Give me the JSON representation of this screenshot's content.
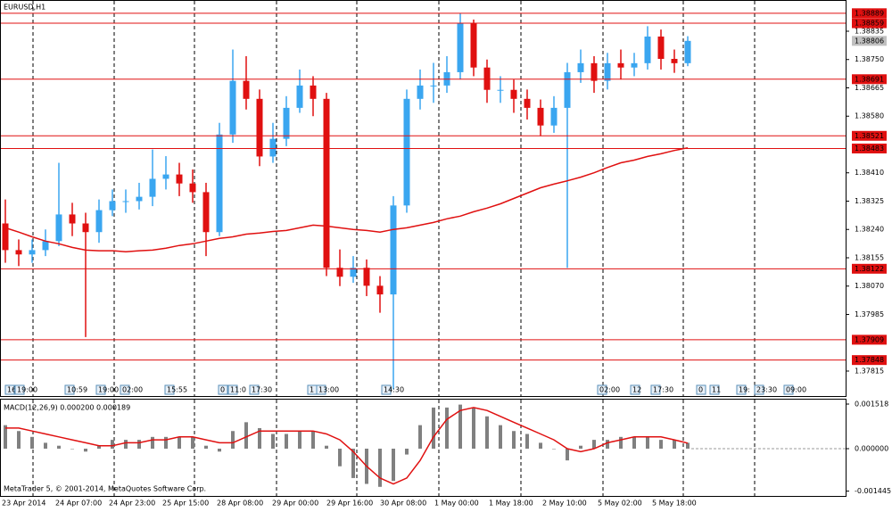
{
  "title": "EURUSD,H1",
  "footer": "MetaTrader 5, © 2001-2014, MetaQuotes Software Corp.",
  "events": [
    "16",
    "19:00",
    "10:59",
    "19:00",
    "02:00",
    "15:55",
    "0",
    "11:0",
    "17:30",
    "1",
    "13:00",
    "14:30",
    "02:00",
    "12",
    "17:30",
    "0",
    "11",
    "19:",
    "23:30",
    "09:00"
  ],
  "chart_data": {
    "type": "candlestick",
    "open": [
      1.38258,
      1.38178,
      1.38165,
      1.38178,
      1.38205,
      1.38285,
      1.38258,
      1.38232,
      1.38298,
      1.38325,
      1.38325,
      1.38338,
      1.38392,
      1.38405,
      1.38378,
      1.38352,
      1.38232,
      1.38525,
      1.38686,
      1.38632,
      1.38459,
      1.38512,
      1.38605,
      1.38672,
      1.38632,
      1.38125,
      1.38098,
      1.38125,
      1.38071,
      1.38045,
      1.38312,
      1.38632,
      1.38672,
      1.38672,
      1.38712,
      1.38859,
      1.38726,
      1.38659,
      1.38659,
      1.38632,
      1.38605,
      1.38552,
      1.38605,
      1.38712,
      1.38739,
      1.38686,
      1.38739,
      1.38726,
      1.38739,
      1.38819,
      1.38752,
      1.38739
    ],
    "high": [
      1.3833,
      1.3821,
      1.3821,
      1.3824,
      1.3844,
      1.3832,
      1.3829,
      1.3833,
      1.3836,
      1.3836,
      1.3838,
      1.3848,
      1.3846,
      1.3844,
      1.3842,
      1.3838,
      1.3856,
      1.3878,
      1.3876,
      1.3866,
      1.3856,
      1.3864,
      1.3872,
      1.387,
      1.3865,
      1.3818,
      1.3816,
      1.3815,
      1.381,
      1.3834,
      1.3866,
      1.3872,
      1.3874,
      1.3876,
      1.38889,
      1.3887,
      1.3875,
      1.387,
      1.3869,
      1.3866,
      1.3863,
      1.3864,
      1.3874,
      1.3878,
      1.3876,
      1.3877,
      1.3878,
      1.3877,
      1.3885,
      1.3884,
      1.3878,
      1.3882
    ],
    "low": [
      1.3814,
      1.3813,
      1.3814,
      1.3816,
      1.3819,
      1.3822,
      1.37917,
      1.382,
      1.3828,
      1.3829,
      1.383,
      1.3831,
      1.3836,
      1.3834,
      1.3832,
      1.3816,
      1.3822,
      1.385,
      1.386,
      1.3843,
      1.3844,
      1.3849,
      1.3859,
      1.3858,
      1.381,
      1.3807,
      1.3808,
      1.3804,
      1.3799,
      1.3776,
      1.3829,
      1.386,
      1.3862,
      1.3865,
      1.3869,
      1.387,
      1.3862,
      1.3862,
      1.3859,
      1.3857,
      1.3852,
      1.3853,
      1.38125,
      1.3868,
      1.3865,
      1.3866,
      1.3869,
      1.387,
      1.3872,
      1.3872,
      1.3871,
      1.3873
    ],
    "close": [
      1.38178,
      1.38165,
      1.38178,
      1.38205,
      1.38285,
      1.38258,
      1.38232,
      1.38298,
      1.38325,
      1.38325,
      1.38338,
      1.38392,
      1.38405,
      1.38378,
      1.38352,
      1.38232,
      1.38525,
      1.38686,
      1.38632,
      1.38459,
      1.38512,
      1.38605,
      1.38672,
      1.38632,
      1.38125,
      1.38098,
      1.38125,
      1.38071,
      1.38045,
      1.38312,
      1.38632,
      1.38672,
      1.38672,
      1.38712,
      1.38859,
      1.38726,
      1.38659,
      1.38659,
      1.38632,
      1.38605,
      1.38552,
      1.38605,
      1.38712,
      1.38739,
      1.38686,
      1.38739,
      1.38726,
      1.38739,
      1.38819,
      1.38752,
      1.38739,
      1.38806
    ],
    "ma": [
      1.38245,
      1.38232,
      1.38218,
      1.38205,
      1.38197,
      1.38186,
      1.38178,
      1.38176,
      1.38176,
      1.38173,
      1.38176,
      1.38178,
      1.38184,
      1.38192,
      1.38197,
      1.38205,
      1.38213,
      1.38218,
      1.38226,
      1.38229,
      1.38234,
      1.38237,
      1.38245,
      1.38253,
      1.3825,
      1.38245,
      1.3824,
      1.38237,
      1.38232,
      1.3824,
      1.38245,
      1.38253,
      1.38261,
      1.38272,
      1.3828,
      1.38293,
      1.38304,
      1.38317,
      1.38333,
      1.38349,
      1.38365,
      1.38376,
      1.38386,
      1.38397,
      1.3841,
      1.38426,
      1.3844,
      1.38448,
      1.38459,
      1.38467,
      1.38477,
      1.38485
    ],
    "up_color": "#3aa6f0",
    "down_color": "#e01010",
    "ma_color": "#e01010",
    "ylim": [
      1.3774,
      1.38926
    ],
    "yticks": [
      1.38835,
      {
        "value": 1.3875,
        "label": "1.38750"
      },
      1.38665,
      {
        "value": 1.3858,
        "label": "1.38580"
      },
      {
        "value": 1.3841,
        "label": "1.38410"
      },
      1.38325,
      {
        "value": 1.3824,
        "label": "1.38240"
      },
      1.38155,
      {
        "value": 1.3807,
        "label": "1.38070"
      },
      1.37985,
      1.37815
    ],
    "levels": [
      1.38889,
      1.38859,
      1.38691,
      1.38521,
      1.38483,
      1.38122,
      1.37909,
      1.37848
    ],
    "level_color": "#e01010",
    "current_price": 1.38806,
    "xlabels": [
      "23 Apr 2014",
      "24 Apr 07:00",
      "24 Apr 23:00",
      "25 Apr 15:00",
      "28 Apr 08:00",
      "29 Apr 00:00",
      "29 Apr 16:00",
      "30 Apr 08:00",
      "1 May 00:00",
      "1 May 18:00",
      "2 May 10:00",
      "5 May 02:00",
      "5 May 18:00"
    ]
  },
  "macd": {
    "type": "histogram",
    "label": "MACD(12,26,9) 0.000200 0.000189",
    "histogram": [
      0.0008,
      0.0006,
      0.0004,
      0.0002,
      0.0001,
      0,
      -0.0001,
      0.0001,
      0.0003,
      0.0003,
      0.0003,
      0.0004,
      0.0004,
      0.0004,
      0.0004,
      0.0001,
      -0.0001,
      0.0006,
      0.0009,
      0.0007,
      0.0005,
      0.0005,
      0.0006,
      0.0006,
      0.0001,
      -0.0006,
      -0.001,
      -0.0012,
      -0.0013,
      -0.0011,
      -0.0002,
      0.0008,
      0.0014,
      0.0014,
      0.0015,
      0.0014,
      0.0011,
      0.0008,
      0.0006,
      0.0005,
      0.0002,
      0,
      -0.0004,
      0.0001,
      0.0003,
      0.0003,
      0.0004,
      0.0004,
      0.0004,
      0.0003,
      0.0003,
      0.0002
    ],
    "signal": [
      0.0007,
      0.0007,
      0.0006,
      0.0005,
      0.0004,
      0.0003,
      0.0002,
      0.0001,
      0.0001,
      0.0002,
      0.0002,
      0.0003,
      0.0003,
      0.0004,
      0.0004,
      0.0003,
      0.0002,
      0.0002,
      0.0004,
      0.0006,
      0.0006,
      0.0006,
      0.0006,
      0.0006,
      0.0005,
      0.0003,
      -0.0001,
      -0.0006,
      -0.001,
      -0.0012,
      -0.001,
      -0.0004,
      0.0004,
      0.001,
      0.0013,
      0.0014,
      0.0013,
      0.0011,
      0.0009,
      0.0007,
      0.0005,
      0.0003,
      0,
      -0.0001,
      0,
      0.0002,
      0.0003,
      0.0004,
      0.0004,
      0.0004,
      0.0003,
      0.000189
    ],
    "color": "#808080",
    "signal_color": "#e01010",
    "ylim": [
      -0.00161,
      0.00167
    ],
    "yticks": [
      0.001518,
      {
        "value": 0,
        "label": "0.000000"
      },
      -0.001445
    ]
  }
}
